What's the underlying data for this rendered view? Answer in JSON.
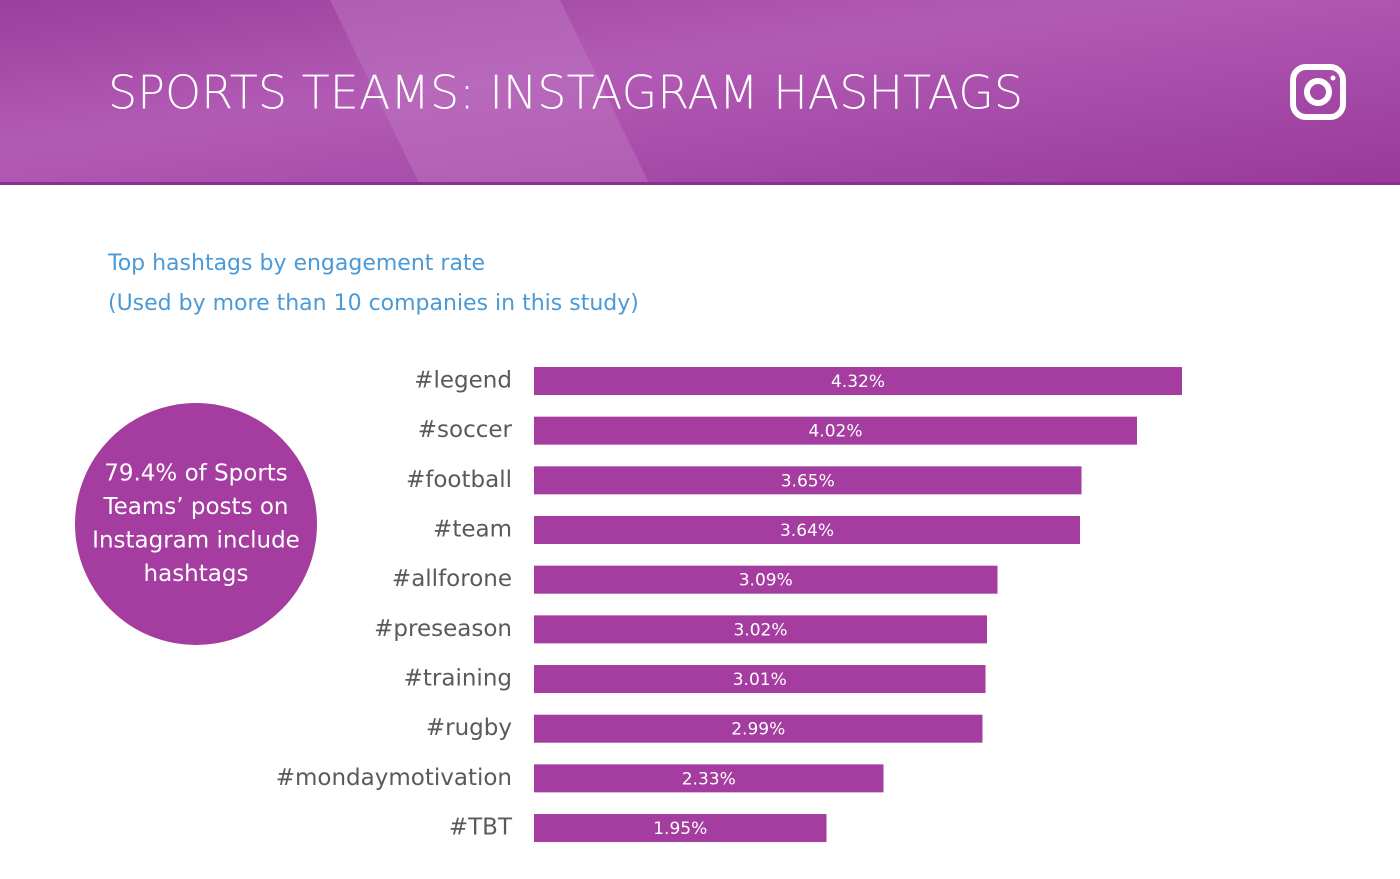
{
  "header": {
    "title": "SPORTS TEAMS: INSTAGRAM HASHTAGS"
  },
  "chart_data": {
    "type": "bar",
    "orientation": "horizontal",
    "subtitle": [
      "Top hashtags by engagement rate",
      "(Used by more than 10 companies in this study)"
    ],
    "annotation": [
      "79.4% of Sports",
      "Teams’ posts on",
      "Instagram include",
      "hashtags"
    ],
    "categories": [
      "#legend",
      "#soccer",
      "#football",
      "#team",
      "#allforone",
      "#preseason",
      "#training",
      "#rugby",
      "#mondaymotivation",
      "#TBT"
    ],
    "values": [
      4.32,
      4.02,
      3.65,
      3.64,
      3.09,
      3.02,
      3.01,
      2.99,
      2.33,
      1.95
    ],
    "value_labels": [
      "4.32%",
      "4.02%",
      "3.65%",
      "3.64%",
      "3.09%",
      "3.02%",
      "3.01%",
      "2.99%",
      "2.33%",
      "1.95%"
    ],
    "color": "#a53da0",
    "xlim": [
      0,
      5.6
    ]
  }
}
